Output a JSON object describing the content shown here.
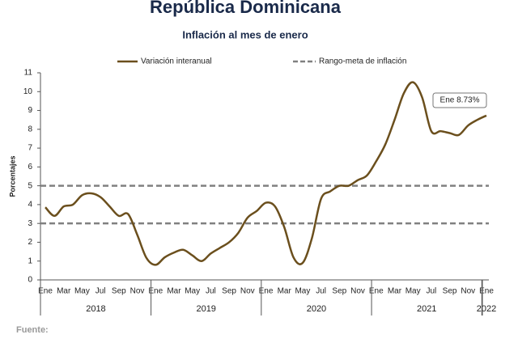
{
  "chart_data": {
    "type": "line",
    "title": "República Dominicana",
    "subtitle": "Inflación al mes de enero",
    "y_label": "Porcentajes",
    "source": "Fuente:",
    "categories": [
      "Ene",
      null,
      "Mar",
      null,
      "May",
      null,
      "Jul",
      null,
      "Sep",
      null,
      "Nov",
      null,
      "Ene",
      null,
      "Mar",
      null,
      "May",
      null,
      "Jul",
      null,
      "Sep",
      null,
      "Nov",
      null,
      "Ene",
      null,
      "Mar",
      null,
      "May",
      null,
      "Jul",
      null,
      "Sep",
      null,
      "Nov",
      null,
      "Ene",
      null,
      "Mar",
      null,
      "May",
      null,
      "Jul",
      null,
      "Sep",
      null,
      "Nov",
      null,
      "Ene"
    ],
    "x_groups": [
      "2018",
      "2019",
      "2020",
      "2021",
      "2022"
    ],
    "series": [
      {
        "name": "Variación interanual",
        "color": "#6b4f1d",
        "values": [
          3.86,
          3.4,
          3.9,
          4.0,
          4.5,
          4.6,
          4.4,
          3.9,
          3.4,
          3.5,
          2.4,
          1.17,
          0.8,
          1.2,
          1.45,
          1.6,
          1.3,
          1.0,
          1.4,
          1.7,
          2.0,
          2.5,
          3.3,
          3.66,
          4.1,
          3.9,
          2.8,
          1.2,
          0.9,
          2.2,
          4.3,
          4.7,
          5.0,
          5.0,
          5.3,
          5.55,
          6.3,
          7.2,
          8.5,
          9.9,
          10.5,
          9.7,
          7.9,
          7.9,
          7.8,
          7.7,
          8.2,
          8.5,
          8.73
        ]
      }
    ],
    "target_band": {
      "name": "Rango-meta de inflación",
      "color": "#808080",
      "values": [
        3,
        5
      ]
    },
    "annotation": "Ene 8.73%",
    "ylim": [
      0,
      11
    ],
    "yticks": [
      0,
      1,
      2,
      3,
      4,
      5,
      6,
      7,
      8,
      9,
      10,
      11
    ]
  }
}
